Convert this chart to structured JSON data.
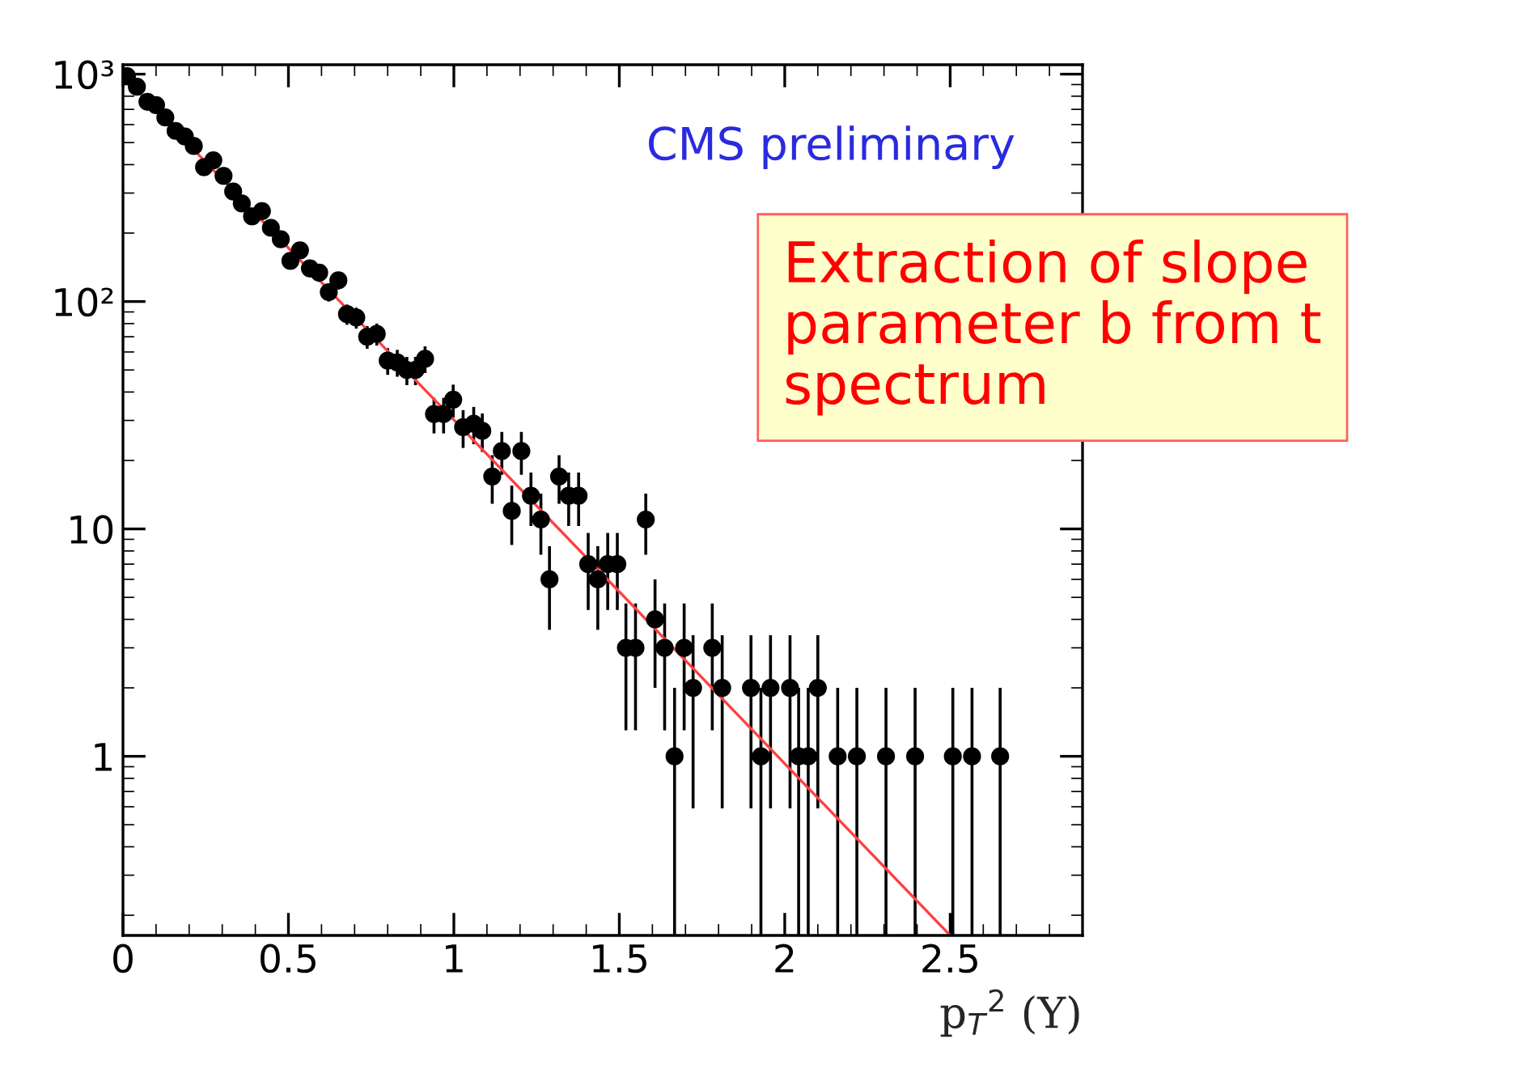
{
  "chart_data": {
    "type": "scatter",
    "xlabel": "p$_{T}$$^{2}$ (Y)",
    "annotations": [
      "CMS preliminary",
      "Extraction of slope parameter b from t spectrum"
    ],
    "xlim": [
      0,
      2.9
    ],
    "xticks": [
      0,
      0.5,
      1,
      1.5,
      2,
      2.5
    ],
    "ylim": [
      0.163,
      1100
    ],
    "log": true,
    "yticks": [
      {
        "value": 1,
        "label": "1"
      },
      {
        "value": 10,
        "label": "10"
      },
      {
        "value": 100,
        "label": "10²"
      },
      {
        "value": 1000,
        "label": "10³"
      }
    ],
    "grid": false,
    "legend": false,
    "marker": "circle",
    "series": [
      {
        "color": "#000000",
        "x": [
          0.012,
          0.042,
          0.074,
          0.1,
          0.128,
          0.159,
          0.187,
          0.214,
          0.245,
          0.273,
          0.304,
          0.333,
          0.359,
          0.39,
          0.42,
          0.447,
          0.477,
          0.506,
          0.535,
          0.565,
          0.593,
          0.622,
          0.651,
          0.677,
          0.705,
          0.738,
          0.767,
          0.8,
          0.829,
          0.858,
          0.884,
          0.913,
          0.94,
          0.969,
          0.998,
          1.028,
          1.06,
          1.086,
          1.116,
          1.145,
          1.175,
          1.204,
          1.233,
          1.263,
          1.289,
          1.318,
          1.347,
          1.377,
          1.406,
          1.435,
          1.465,
          1.494,
          1.52,
          1.549,
          1.58,
          1.608,
          1.637,
          1.667,
          1.696,
          1.723,
          1.781,
          1.811,
          1.898,
          1.928,
          1.957,
          2.016,
          2.042,
          2.071,
          2.1,
          2.16,
          2.218,
          2.306,
          2.394,
          2.508,
          2.566,
          2.651
        ],
        "values": [
          980,
          880,
          756,
          731,
          645,
          563,
          532,
          483,
          390,
          418,
          357,
          305,
          270,
          237,
          250,
          211,
          188,
          151,
          168,
          140,
          134,
          110,
          124,
          88,
          85,
          70,
          72,
          55,
          54,
          50,
          50,
          56,
          32,
          32,
          37,
          28,
          29,
          27,
          17,
          22,
          12,
          22,
          14,
          11,
          6,
          17,
          14,
          14,
          7,
          6,
          7,
          7,
          3,
          3,
          11,
          4,
          3,
          1,
          3,
          2,
          3,
          2,
          2,
          1,
          2,
          2,
          1,
          1,
          2,
          1,
          1,
          1,
          1,
          1,
          1,
          1
        ],
        "errors": [
          31,
          30,
          27,
          27,
          25,
          24,
          23,
          22,
          20,
          20,
          19,
          17,
          16,
          15,
          16,
          15,
          14,
          12,
          13,
          12,
          12,
          10,
          11,
          9,
          9,
          8,
          8,
          7.4,
          7.3,
          7.1,
          7.1,
          7.5,
          5.7,
          5.7,
          6.1,
          5.3,
          5.4,
          5.2,
          4.1,
          4.7,
          3.5,
          4.7,
          3.7,
          3.3,
          2.4,
          4.1,
          3.7,
          3.7,
          2.6,
          2.4,
          2.6,
          2.6,
          1.7,
          1.7,
          3.3,
          2,
          1.7,
          [
            0.163,
            2
          ],
          1.7,
          1.41,
          1.7,
          1.41,
          1.41,
          [
            0.163,
            2
          ],
          1.41,
          1.41,
          [
            0.163,
            2
          ],
          [
            0.163,
            2
          ],
          1.41,
          [
            0.163,
            2
          ],
          [
            0.163,
            2
          ],
          [
            0.163,
            2
          ],
          [
            0.163,
            2
          ],
          [
            0.163,
            2
          ],
          [
            0.163,
            2
          ],
          [
            0.163,
            2
          ]
        ]
      },
      {
        "type": "line",
        "marker": "none",
        "color": "#ff4040",
        "x": [
          0,
          2.5
        ],
        "values": [
          980,
          0.163
        ]
      }
    ]
  }
}
